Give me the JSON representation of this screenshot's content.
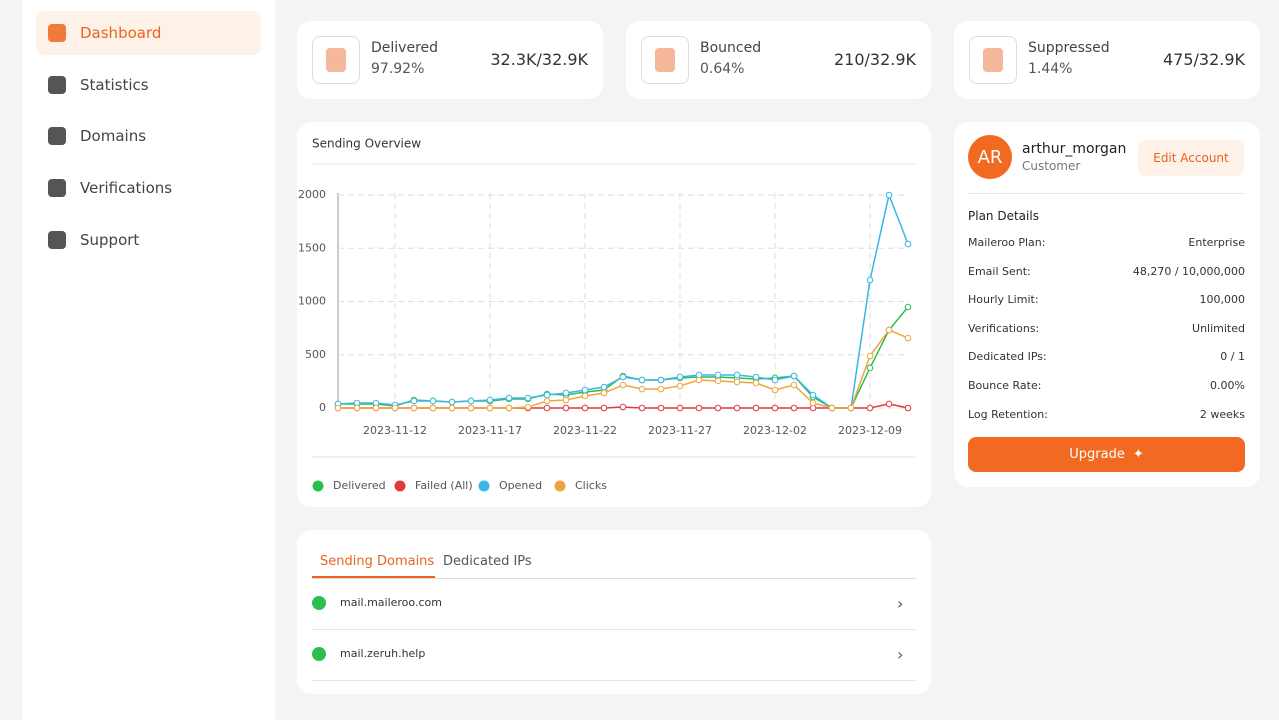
{
  "sidebar": {
    "nav": [
      "Dashboard",
      "Statistics",
      "Domains",
      "Verifications",
      "Support"
    ]
  },
  "stats": [
    {
      "label": "Delivered",
      "percent": "97.92%",
      "count": "32.3K/32.9K"
    },
    {
      "label": "Bounced",
      "percent": "0.64%",
      "count": "210/32.9K"
    },
    {
      "label": "Suppressed",
      "percent": "1.44%",
      "count": "475/32.9K"
    }
  ],
  "chart_data": {
    "type": "line",
    "title": "Sending Overview",
    "categories": [
      null,
      null,
      null,
      "2023-11-12",
      null,
      null,
      null,
      null,
      "2023-11-17",
      null,
      null,
      null,
      null,
      "2023-11-22",
      null,
      null,
      null,
      null,
      "2023-11-27",
      null,
      null,
      null,
      null,
      "2023-12-02",
      null,
      null,
      null,
      null,
      "2023-12-09",
      null,
      null
    ],
    "series": [
      {
        "name": "Delivered",
        "color": "#2bbf4f",
        "values": [
          38,
          38,
          38,
          19,
          75,
          66,
          56,
          66,
          66,
          85,
          85,
          131,
          122,
          150,
          169,
          300,
          263,
          263,
          282,
          291,
          291,
          282,
          272,
          282,
          300,
          103,
          0,
          0,
          376,
          732,
          948
        ]
      },
      {
        "name": "Failed (All)",
        "color": "#e03a3a",
        "values": [
          0,
          0,
          0,
          0,
          0,
          0,
          0,
          0,
          0,
          0,
          0,
          0,
          0,
          0,
          0,
          9,
          0,
          0,
          0,
          0,
          0,
          0,
          0,
          0,
          0,
          0,
          0,
          0,
          0,
          38,
          0
        ]
      },
      {
        "name": "Opened",
        "color": "#3bb6e8",
        "values": [
          38,
          47,
          47,
          28,
          66,
          66,
          56,
          66,
          75,
          94,
          94,
          122,
          141,
          169,
          197,
          291,
          263,
          263,
          291,
          310,
          310,
          310,
          291,
          263,
          300,
          122,
          0,
          0,
          1202,
          2000,
          1540
        ]
      },
      {
        "name": "Clicks",
        "color": "#f0a53a",
        "values": [
          0,
          0,
          0,
          0,
          0,
          0,
          0,
          0,
          0,
          0,
          9,
          66,
          75,
          113,
          141,
          216,
          178,
          178,
          207,
          263,
          254,
          244,
          235,
          169,
          216,
          47,
          0,
          0,
          488,
          732,
          657
        ]
      }
    ],
    "ylim": [
      0,
      2000
    ],
    "yticks": [
      0,
      500,
      1000,
      1500,
      2000
    ],
    "grid": true
  },
  "domains": {
    "tabs": [
      "Sending Domains",
      "Dedicated IPs"
    ],
    "items": [
      "mail.maileroo.com",
      "mail.zeruh.help"
    ]
  },
  "account": {
    "initials": "AR",
    "username": "arthur_morgan",
    "role": "Customer",
    "edit": "Edit Account",
    "plan_title": "Plan Details",
    "plan": [
      [
        "Maileroo Plan:",
        "Enterprise"
      ],
      [
        "Email Sent:",
        "48,270 / 10,000,000"
      ],
      [
        "Hourly Limit:",
        "100,000"
      ],
      [
        "Verifications:",
        "Unlimited"
      ],
      [
        "Dedicated IPs:",
        "0 / 1"
      ],
      [
        "Bounce Rate:",
        "0.00%"
      ],
      [
        "Log Retention:",
        "2 weeks"
      ]
    ],
    "upgrade": "Upgrade"
  }
}
